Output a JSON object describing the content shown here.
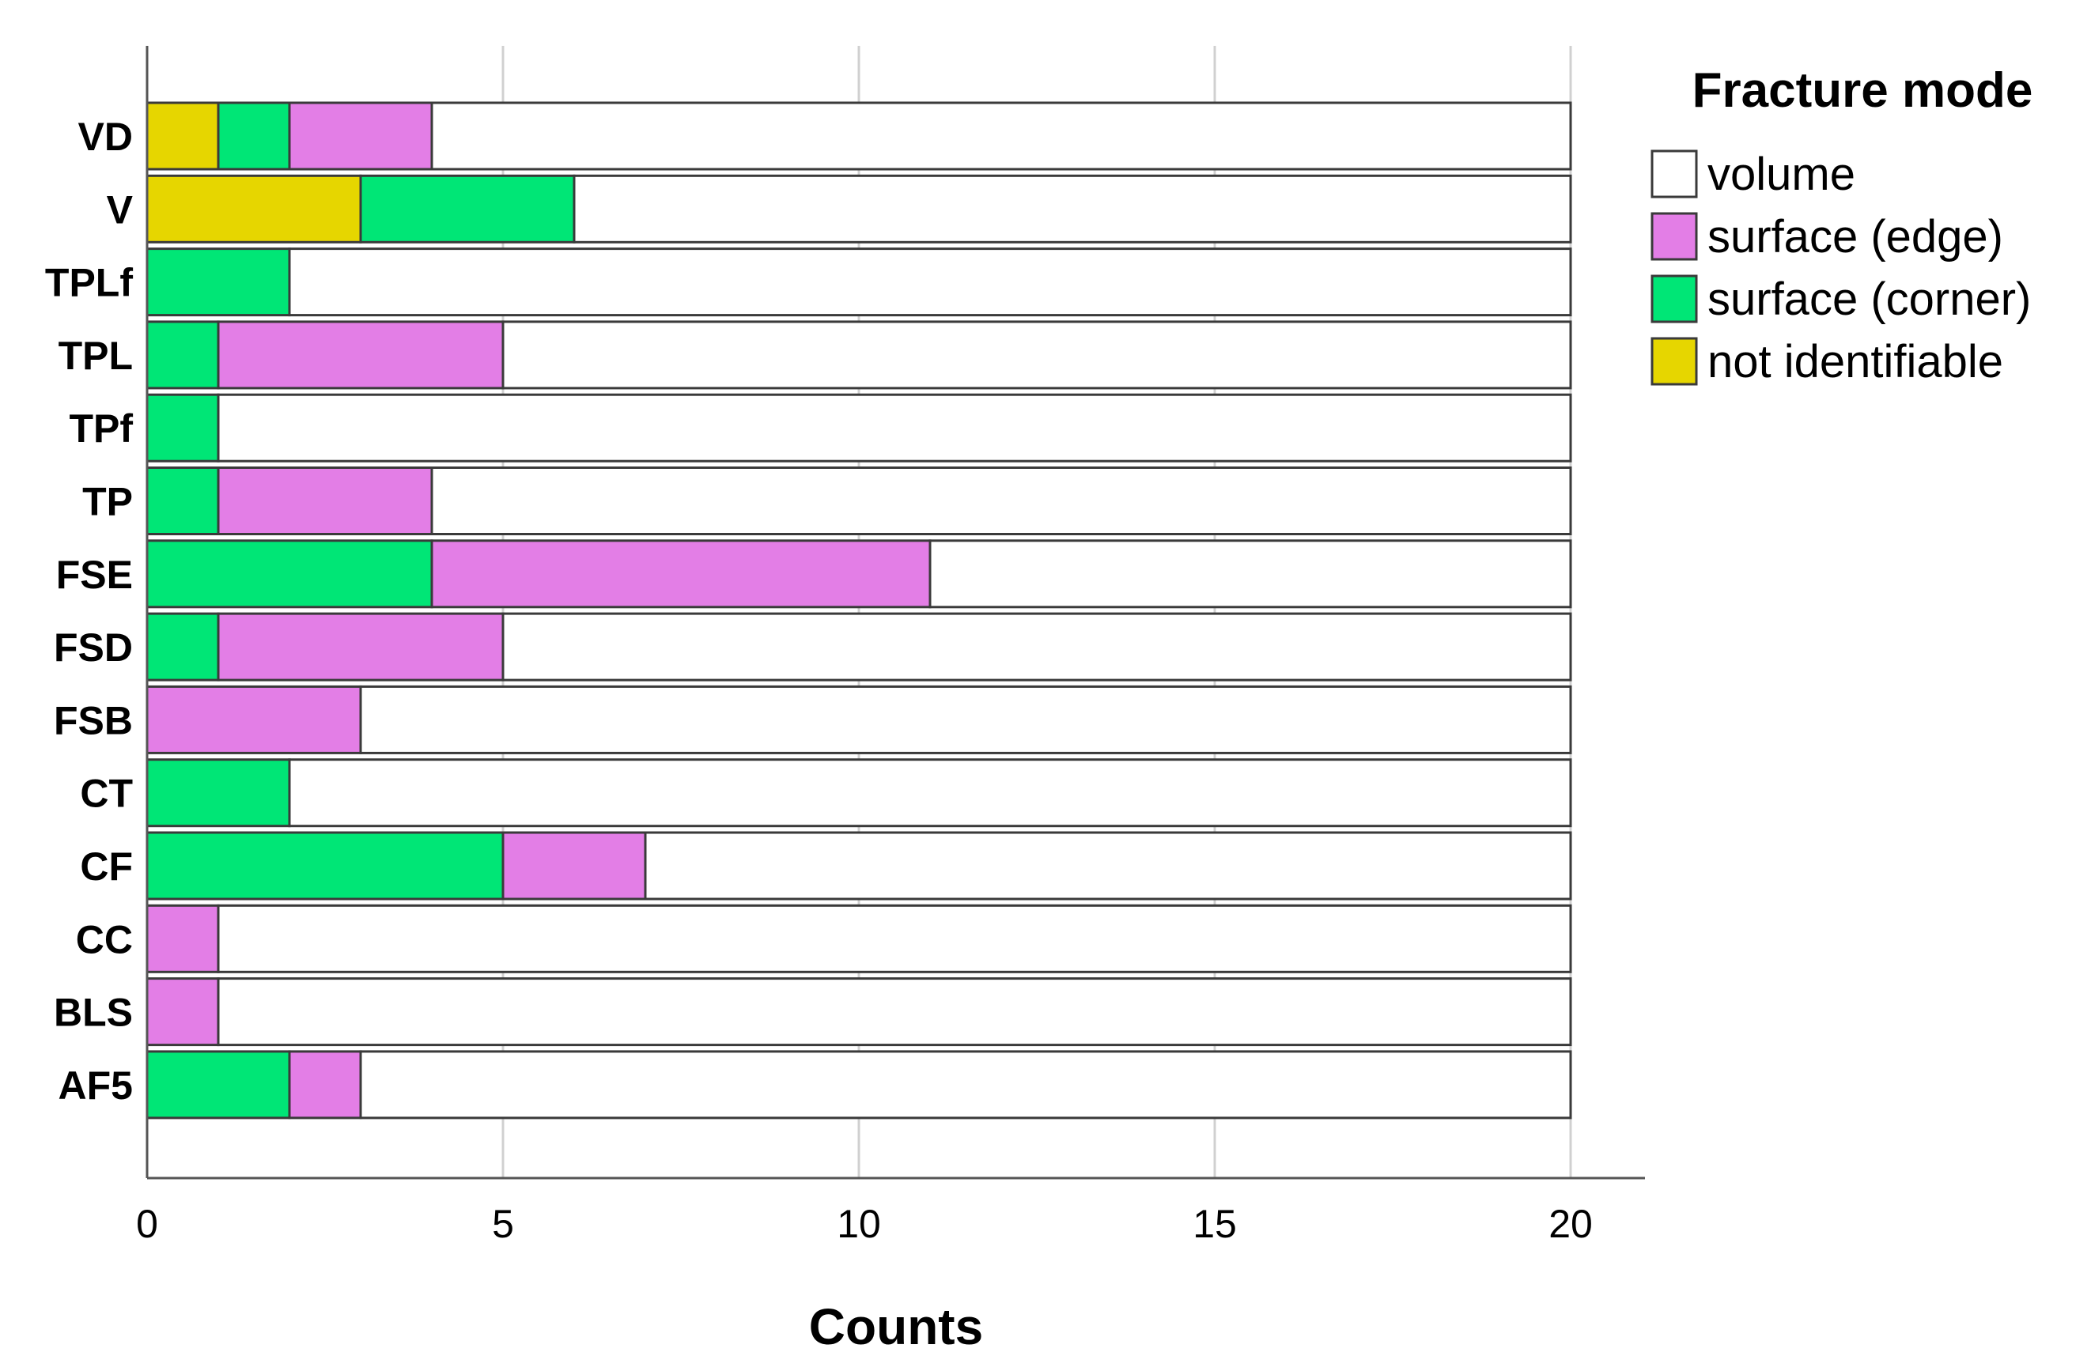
{
  "chart_data": {
    "type": "bar",
    "orientation": "horizontal",
    "stacked": true,
    "categories": [
      "VD",
      "V",
      "TPLf",
      "TPL",
      "TPf",
      "TP",
      "FSE",
      "FSD",
      "FSB",
      "CT",
      "CF",
      "CC",
      "BLS",
      "AF5"
    ],
    "series": [
      {
        "name": "not identifiable",
        "color": "#e6d600",
        "values": [
          1,
          3,
          0,
          0,
          0,
          0,
          0,
          0,
          0,
          0,
          0,
          0,
          0,
          0
        ]
      },
      {
        "name": "surface (corner)",
        "color": "#00e676",
        "values": [
          1,
          3,
          2,
          1,
          1,
          1,
          4,
          1,
          0,
          2,
          5,
          0,
          0,
          2
        ]
      },
      {
        "name": "surface (edge)",
        "color": "#e37ee6",
        "values": [
          2,
          0,
          0,
          4,
          0,
          3,
          7,
          4,
          3,
          0,
          2,
          1,
          1,
          1
        ]
      },
      {
        "name": "volume",
        "color": "#ffffff",
        "values": [
          16,
          14,
          18,
          15,
          19,
          16,
          9,
          15,
          17,
          18,
          13,
          19,
          19,
          17
        ]
      }
    ],
    "xlabel": "Counts",
    "xlim": [
      0,
      20
    ],
    "xticks": [
      0,
      5,
      10,
      15,
      20
    ],
    "grid": true,
    "legend": {
      "title": "Fracture mode",
      "position": "right",
      "entries": [
        "volume",
        "surface (edge)",
        "surface (corner)",
        "not identifiable"
      ]
    }
  }
}
